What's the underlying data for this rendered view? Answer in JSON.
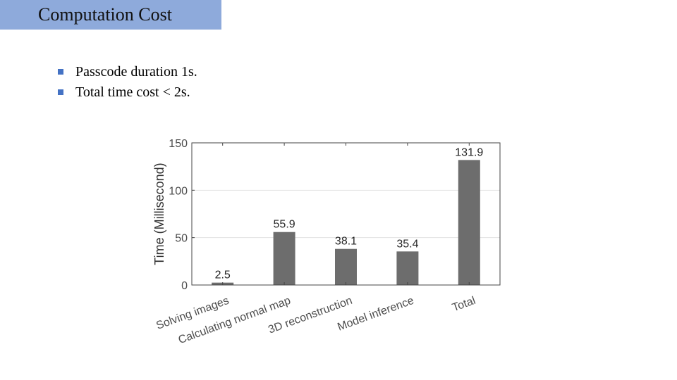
{
  "slide": {
    "title": "Computation Cost",
    "bullets": [
      "Passcode duration 1s.",
      "Total time cost < 2s."
    ],
    "colors": {
      "title_bar": "#8eaadb",
      "bullet": "#4472c4"
    }
  },
  "chart_data": {
    "type": "bar",
    "categories": [
      "Solving images",
      "Calculating normal map",
      "3D reconstruction",
      "Model inference",
      "Total"
    ],
    "values": [
      2.5,
      55.9,
      38.1,
      35.4,
      131.9
    ],
    "value_labels": [
      "2.5",
      "55.9",
      "38.1",
      "35.4",
      "131.9"
    ],
    "title": "",
    "xlabel": "",
    "ylabel": "Time (Millisecond)",
    "ylim": [
      0,
      150
    ],
    "yticks": [
      0,
      50,
      100,
      150
    ],
    "grid": "horizontal",
    "legend": "none",
    "bar_color": "#6d6d6d"
  }
}
